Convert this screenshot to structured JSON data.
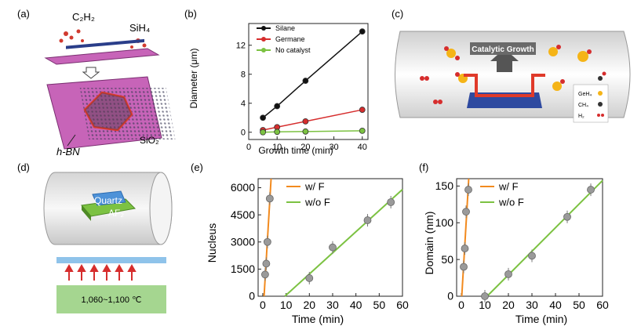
{
  "panels": {
    "a": {
      "label": "(a)",
      "gas_left": "C₂H₂",
      "gas_right": "SiH₄",
      "material": "h-BN",
      "substrate": "SiO₂"
    },
    "b": {
      "label": "(b)"
    },
    "c": {
      "label": "(c)",
      "banner": "Catalytic Growth",
      "legend": [
        "GeH₄",
        "CH₄",
        "H₂"
      ]
    },
    "d": {
      "label": "(d)",
      "top_block": "Quartz",
      "bottom_block": "AF₂",
      "temperature": "1,060~1,100 ℃"
    },
    "e": {
      "label": "(e)"
    },
    "f": {
      "label": "(f)"
    }
  },
  "colors": {
    "black_series": "#111111",
    "red_series": "#d62d2d",
    "green_series": "#7cc242",
    "orange_series": "#f28a1e",
    "substrate": "#c764b8",
    "hbn_highlight": "#e03a2a"
  },
  "chart_data": [
    {
      "id": "b",
      "type": "line",
      "xlabel": "Growth time (min)",
      "ylabel": "Diameter (μm)",
      "xlim": [
        0,
        42
      ],
      "ylim": [
        -1,
        15
      ],
      "xticks": [
        0,
        10,
        20,
        30,
        40
      ],
      "yticks": [
        0,
        4,
        8,
        12
      ],
      "legend_position": "top-left",
      "series": [
        {
          "name": "Silane",
          "color": "#111111",
          "x": [
            5,
            10,
            20,
            40
          ],
          "y": [
            2.0,
            3.6,
            7.1,
            13.9
          ]
        },
        {
          "name": "Germane",
          "color": "#d62d2d",
          "x": [
            5,
            10,
            20,
            40
          ],
          "y": [
            0.3,
            0.7,
            1.5,
            3.1
          ]
        },
        {
          "name": "No catalyst",
          "color": "#7cc242",
          "x": [
            5,
            10,
            20,
            40
          ],
          "y": [
            0.0,
            0.05,
            0.1,
            0.2
          ]
        }
      ]
    },
    {
      "id": "e",
      "type": "scatter",
      "xlabel": "Time (min)",
      "ylabel": "Nucleus",
      "xlim": [
        -2,
        60
      ],
      "ylim": [
        0,
        6500
      ],
      "xticks": [
        0,
        10,
        20,
        30,
        40,
        50,
        60
      ],
      "yticks": [
        0,
        1500,
        3000,
        4500,
        6000
      ],
      "legend_position": "top-right",
      "series": [
        {
          "name": "w/ F",
          "color": "#f28a1e",
          "x": [
            1,
            1.5,
            2,
            3
          ],
          "y": [
            1200,
            1800,
            3000,
            5400
          ]
        },
        {
          "name": "w/o F",
          "color": "#7cc242",
          "x": [
            20,
            30,
            45,
            55
          ],
          "y": [
            1000,
            2700,
            4200,
            5200
          ]
        }
      ]
    },
    {
      "id": "f",
      "type": "scatter",
      "xlabel": "Time (min)",
      "ylabel": "Domain (nm)",
      "xlim": [
        -2,
        60
      ],
      "ylim": [
        0,
        160
      ],
      "xticks": [
        0,
        10,
        20,
        30,
        40,
        50,
        60
      ],
      "yticks": [
        0,
        50,
        100,
        150
      ],
      "legend_position": "top-right",
      "series": [
        {
          "name": "w/ F",
          "color": "#f28a1e",
          "x": [
            1,
            1.5,
            2,
            3
          ],
          "y": [
            40,
            65,
            115,
            145
          ]
        },
        {
          "name": "w/o F",
          "color": "#7cc242",
          "x": [
            10,
            20,
            30,
            45,
            55
          ],
          "y": [
            0,
            30,
            55,
            108,
            145
          ]
        }
      ]
    }
  ]
}
